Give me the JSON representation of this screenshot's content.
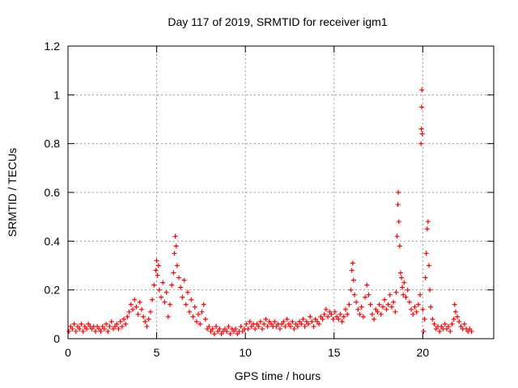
{
  "chart_data": {
    "type": "scatter",
    "title": "Day 117 of 2019, SRMTID for receiver igm1",
    "xlabel": "GPS time / hours",
    "ylabel": "SRMTID / TECUs",
    "xlim": [
      0,
      24
    ],
    "ylim": [
      0,
      1.2
    ],
    "xticks": [
      0,
      5,
      10,
      15,
      20
    ],
    "xtick_labels": [
      "0",
      "5",
      "10",
      "15",
      "20"
    ],
    "yticks": [
      0,
      0.2,
      0.4,
      0.6,
      0.8,
      1.0,
      1.2
    ],
    "ytick_labels": [
      "0",
      "0.2",
      "0.4",
      "0.6",
      "0.8",
      "1",
      "1.2"
    ],
    "grid": true,
    "marker": "+",
    "color": "#ff0000",
    "series": [
      {
        "name": "SRMTID",
        "points": [
          [
            0.05,
            0.03
          ],
          [
            0.15,
            0.05
          ],
          [
            0.25,
            0.04
          ],
          [
            0.35,
            0.06
          ],
          [
            0.45,
            0.03
          ],
          [
            0.55,
            0.05
          ],
          [
            0.65,
            0.04
          ],
          [
            0.75,
            0.06
          ],
          [
            0.85,
            0.03
          ],
          [
            0.95,
            0.05
          ],
          [
            1.05,
            0.04
          ],
          [
            1.15,
            0.06
          ],
          [
            1.25,
            0.05
          ],
          [
            1.35,
            0.04
          ],
          [
            1.45,
            0.05
          ],
          [
            1.55,
            0.03
          ],
          [
            1.65,
            0.05
          ],
          [
            1.75,
            0.04
          ],
          [
            1.85,
            0.03
          ],
          [
            1.95,
            0.05
          ],
          [
            2.05,
            0.04
          ],
          [
            2.15,
            0.06
          ],
          [
            2.25,
            0.03
          ],
          [
            2.35,
            0.05
          ],
          [
            2.45,
            0.07
          ],
          [
            2.55,
            0.04
          ],
          [
            2.65,
            0.05
          ],
          [
            2.75,
            0.06
          ],
          [
            2.85,
            0.04
          ],
          [
            2.95,
            0.07
          ],
          [
            3.05,
            0.05
          ],
          [
            3.15,
            0.08
          ],
          [
            3.25,
            0.06
          ],
          [
            3.35,
            0.09
          ],
          [
            3.45,
            0.11
          ],
          [
            3.55,
            0.14
          ],
          [
            3.65,
            0.12
          ],
          [
            3.75,
            0.16
          ],
          [
            3.85,
            0.13
          ],
          [
            3.95,
            0.1
          ],
          [
            4.05,
            0.15
          ],
          [
            4.15,
            0.12
          ],
          [
            4.25,
            0.09
          ],
          [
            4.35,
            0.07
          ],
          [
            4.45,
            0.05
          ],
          [
            4.55,
            0.08
          ],
          [
            4.65,
            0.11
          ],
          [
            4.75,
            0.16
          ],
          [
            4.85,
            0.22
          ],
          [
            4.95,
            0.28
          ],
          [
            5.0,
            0.32
          ],
          [
            5.05,
            0.26
          ],
          [
            5.1,
            0.3
          ],
          [
            5.15,
            0.2
          ],
          [
            5.25,
            0.17
          ],
          [
            5.35,
            0.23
          ],
          [
            5.45,
            0.15
          ],
          [
            5.55,
            0.19
          ],
          [
            5.65,
            0.09
          ],
          [
            5.75,
            0.14
          ],
          [
            5.85,
            0.22
          ],
          [
            5.95,
            0.27
          ],
          [
            6.0,
            0.35
          ],
          [
            6.05,
            0.42
          ],
          [
            6.1,
            0.38
          ],
          [
            6.15,
            0.3
          ],
          [
            6.25,
            0.25
          ],
          [
            6.35,
            0.21
          ],
          [
            6.45,
            0.17
          ],
          [
            6.55,
            0.24
          ],
          [
            6.65,
            0.14
          ],
          [
            6.75,
            0.19
          ],
          [
            6.85,
            0.11
          ],
          [
            6.95,
            0.16
          ],
          [
            7.05,
            0.09
          ],
          [
            7.15,
            0.13
          ],
          [
            7.25,
            0.07
          ],
          [
            7.35,
            0.1
          ],
          [
            7.45,
            0.06
          ],
          [
            7.55,
            0.11
          ],
          [
            7.65,
            0.14
          ],
          [
            7.75,
            0.08
          ],
          [
            7.85,
            0.04
          ],
          [
            7.95,
            0.05
          ],
          [
            8.05,
            0.03
          ],
          [
            8.15,
            0.04
          ],
          [
            8.25,
            0.02
          ],
          [
            8.35,
            0.05
          ],
          [
            8.45,
            0.03
          ],
          [
            8.55,
            0.04
          ],
          [
            8.65,
            0.02
          ],
          [
            8.75,
            0.03
          ],
          [
            8.85,
            0.04
          ],
          [
            8.95,
            0.03
          ],
          [
            9.05,
            0.05
          ],
          [
            9.15,
            0.02
          ],
          [
            9.25,
            0.04
          ],
          [
            9.35,
            0.03
          ],
          [
            9.45,
            0.04
          ],
          [
            9.55,
            0.02
          ],
          [
            9.65,
            0.03
          ],
          [
            9.75,
            0.05
          ],
          [
            9.85,
            0.03
          ],
          [
            9.95,
            0.04
          ],
          [
            10.05,
            0.06
          ],
          [
            10.15,
            0.04
          ],
          [
            10.25,
            0.07
          ],
          [
            10.35,
            0.05
          ],
          [
            10.45,
            0.06
          ],
          [
            10.55,
            0.04
          ],
          [
            10.65,
            0.06
          ],
          [
            10.75,
            0.05
          ],
          [
            10.85,
            0.07
          ],
          [
            10.95,
            0.04
          ],
          [
            11.05,
            0.06
          ],
          [
            11.15,
            0.08
          ],
          [
            11.25,
            0.05
          ],
          [
            11.35,
            0.07
          ],
          [
            11.45,
            0.06
          ],
          [
            11.55,
            0.05
          ],
          [
            11.65,
            0.07
          ],
          [
            11.75,
            0.05
          ],
          [
            11.85,
            0.06
          ],
          [
            11.95,
            0.04
          ],
          [
            12.05,
            0.06
          ],
          [
            12.15,
            0.07
          ],
          [
            12.25,
            0.05
          ],
          [
            12.35,
            0.08
          ],
          [
            12.45,
            0.06
          ],
          [
            12.55,
            0.05
          ],
          [
            12.65,
            0.07
          ],
          [
            12.75,
            0.04
          ],
          [
            12.85,
            0.06
          ],
          [
            12.95,
            0.05
          ],
          [
            13.05,
            0.07
          ],
          [
            13.15,
            0.06
          ],
          [
            13.25,
            0.08
          ],
          [
            13.35,
            0.05
          ],
          [
            13.45,
            0.07
          ],
          [
            13.55,
            0.06
          ],
          [
            13.65,
            0.09
          ],
          [
            13.75,
            0.07
          ],
          [
            13.85,
            0.05
          ],
          [
            13.95,
            0.08
          ],
          [
            14.05,
            0.07
          ],
          [
            14.15,
            0.06
          ],
          [
            14.25,
            0.09
          ],
          [
            14.35,
            0.08
          ],
          [
            14.45,
            0.1
          ],
          [
            14.55,
            0.12
          ],
          [
            14.65,
            0.09
          ],
          [
            14.75,
            0.11
          ],
          [
            14.85,
            0.1
          ],
          [
            14.95,
            0.08
          ],
          [
            15.05,
            0.11
          ],
          [
            15.15,
            0.09
          ],
          [
            15.25,
            0.08
          ],
          [
            15.35,
            0.1
          ],
          [
            15.45,
            0.07
          ],
          [
            15.55,
            0.09
          ],
          [
            15.65,
            0.12
          ],
          [
            15.75,
            0.1
          ],
          [
            15.85,
            0.14
          ],
          [
            15.95,
            0.2
          ],
          [
            16.0,
            0.28
          ],
          [
            16.05,
            0.31
          ],
          [
            16.1,
            0.24
          ],
          [
            16.15,
            0.18
          ],
          [
            16.25,
            0.15
          ],
          [
            16.35,
            0.12
          ],
          [
            16.45,
            0.1
          ],
          [
            16.55,
            0.13
          ],
          [
            16.65,
            0.09
          ],
          [
            16.75,
            0.17
          ],
          [
            16.85,
            0.22
          ],
          [
            16.95,
            0.18
          ],
          [
            17.05,
            0.14
          ],
          [
            17.15,
            0.1
          ],
          [
            17.25,
            0.08
          ],
          [
            17.35,
            0.12
          ],
          [
            17.45,
            0.11
          ],
          [
            17.55,
            0.14
          ],
          [
            17.65,
            0.1
          ],
          [
            17.75,
            0.13
          ],
          [
            17.85,
            0.16
          ],
          [
            17.95,
            0.12
          ],
          [
            18.05,
            0.14
          ],
          [
            18.15,
            0.18
          ],
          [
            18.25,
            0.13
          ],
          [
            18.35,
            0.15
          ],
          [
            18.45,
            0.11
          ],
          [
            18.5,
            0.19
          ],
          [
            18.55,
            0.42
          ],
          [
            18.6,
            0.55
          ],
          [
            18.62,
            0.6
          ],
          [
            18.65,
            0.48
          ],
          [
            18.7,
            0.38
          ],
          [
            18.75,
            0.27
          ],
          [
            18.8,
            0.25
          ],
          [
            18.85,
            0.21
          ],
          [
            18.9,
            0.18
          ],
          [
            18.95,
            0.23
          ],
          [
            19.05,
            0.17
          ],
          [
            19.15,
            0.2
          ],
          [
            19.25,
            0.15
          ],
          [
            19.35,
            0.12
          ],
          [
            19.45,
            0.1
          ],
          [
            19.55,
            0.13
          ],
          [
            19.65,
            0.11
          ],
          [
            19.75,
            0.14
          ],
          [
            19.85,
            0.18
          ],
          [
            19.9,
            0.8
          ],
          [
            19.92,
            0.86
          ],
          [
            19.94,
            0.95
          ],
          [
            19.95,
            1.02
          ],
          [
            19.97,
            0.84
          ],
          [
            20.0,
            0.12
          ],
          [
            20.05,
            0.03
          ],
          [
            20.1,
            0.08
          ],
          [
            20.15,
            0.25
          ],
          [
            20.2,
            0.35
          ],
          [
            20.25,
            0.45
          ],
          [
            20.3,
            0.48
          ],
          [
            20.35,
            0.3
          ],
          [
            20.4,
            0.2
          ],
          [
            20.45,
            0.13
          ],
          [
            20.55,
            0.08
          ],
          [
            20.65,
            0.06
          ],
          [
            20.75,
            0.04
          ],
          [
            20.85,
            0.05
          ],
          [
            20.95,
            0.03
          ],
          [
            21.05,
            0.05
          ],
          [
            21.15,
            0.04
          ],
          [
            21.25,
            0.06
          ],
          [
            21.35,
            0.04
          ],
          [
            21.45,
            0.05
          ],
          [
            21.55,
            0.03
          ],
          [
            21.65,
            0.06
          ],
          [
            21.75,
            0.08
          ],
          [
            21.8,
            0.14
          ],
          [
            21.85,
            0.11
          ],
          [
            21.95,
            0.09
          ],
          [
            22.05,
            0.07
          ],
          [
            22.15,
            0.05
          ],
          [
            22.25,
            0.04
          ],
          [
            22.35,
            0.06
          ],
          [
            22.45,
            0.04
          ],
          [
            22.55,
            0.03
          ],
          [
            22.65,
            0.04
          ],
          [
            22.75,
            0.03
          ]
        ]
      }
    ]
  }
}
